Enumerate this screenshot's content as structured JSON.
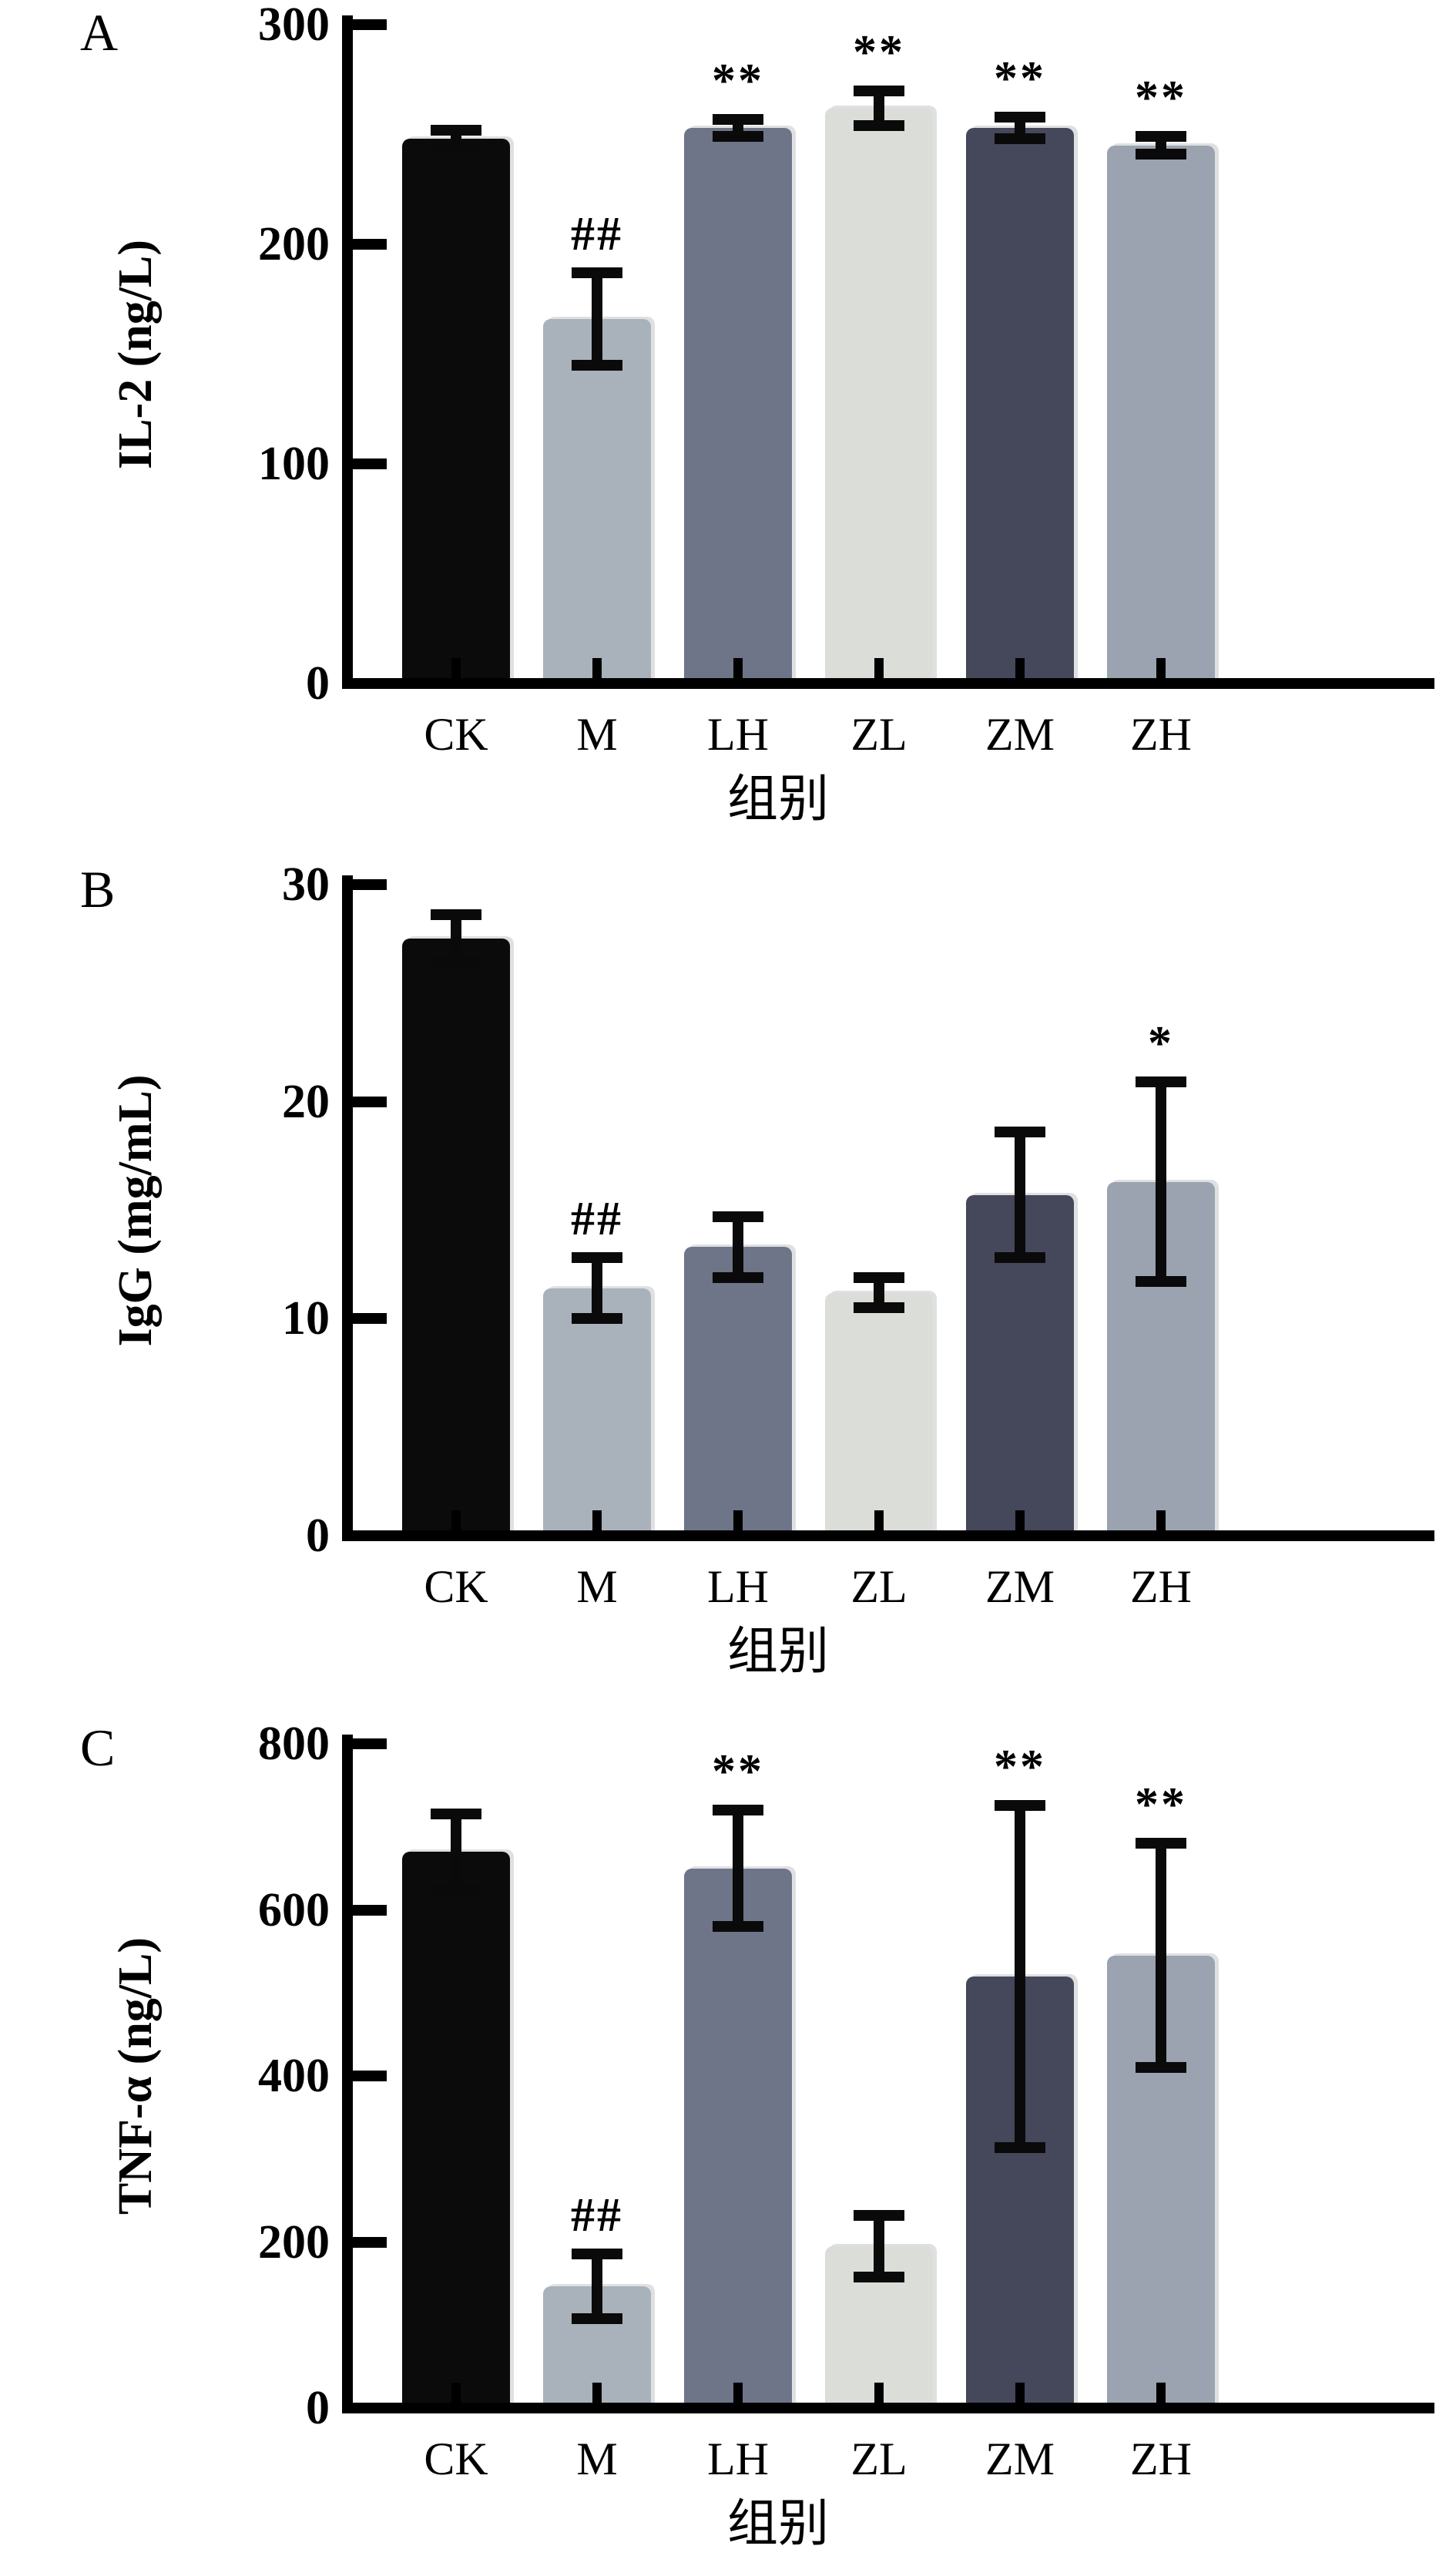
{
  "figure": {
    "background": "#ffffff",
    "axis_color": "#000000",
    "error_bar_color": "#0a0a0a",
    "bar_colors": {
      "CK": "#0b0b0c",
      "M": "#a9b2ba",
      "LH": "#6f7588",
      "ZL": "#dbded8",
      "ZM": "#45475a",
      "ZH": "#9aa3af"
    }
  },
  "chart_data": [
    {
      "type": "bar",
      "panel": "A",
      "title": "",
      "ylabel": "IL-2 (ng/L)",
      "xlabel": "组别",
      "categories": [
        "CK",
        "M",
        "LH",
        "ZL",
        "ZM",
        "ZH"
      ],
      "values": [
        248,
        166,
        253,
        262,
        253,
        245
      ],
      "errors": [
        4,
        21,
        4,
        8,
        5,
        4
      ],
      "annotations": [
        "",
        "##",
        "**",
        "**",
        "**",
        "**"
      ],
      "ylim": [
        0,
        300
      ],
      "yticks": [
        0,
        100,
        200,
        300
      ],
      "grid": false,
      "legend": null
    },
    {
      "type": "bar",
      "panel": "B",
      "title": "",
      "ylabel": "IgG (mg/mL)",
      "xlabel": "组别",
      "categories": [
        "CK",
        "M",
        "LH",
        "ZL",
        "ZM",
        "ZH"
      ],
      "values": [
        27.5,
        11.4,
        13.3,
        11.2,
        15.7,
        16.3
      ],
      "errors": [
        1.1,
        1.4,
        1.4,
        0.7,
        2.9,
        4.6
      ],
      "annotations": [
        "",
        "##",
        "",
        "",
        "",
        "*"
      ],
      "ylim": [
        0,
        30
      ],
      "yticks": [
        0,
        10,
        20,
        30
      ],
      "grid": false,
      "legend": null
    },
    {
      "type": "bar",
      "panel": "C",
      "title": "",
      "ylabel": "TNF-α (ng/L)",
      "xlabel": "组别",
      "categories": [
        "CK",
        "M",
        "LH",
        "ZL",
        "ZM",
        "ZH"
      ],
      "values": [
        670,
        147,
        650,
        195,
        520,
        545
      ],
      "errors": [
        46,
        39,
        70,
        37,
        206,
        135
      ],
      "annotations": [
        "",
        "##",
        "**",
        "",
        "**",
        "**"
      ],
      "ylim": [
        0,
        800
      ],
      "yticks": [
        0,
        200,
        400,
        600,
        800
      ],
      "grid": false,
      "legend": null
    }
  ]
}
